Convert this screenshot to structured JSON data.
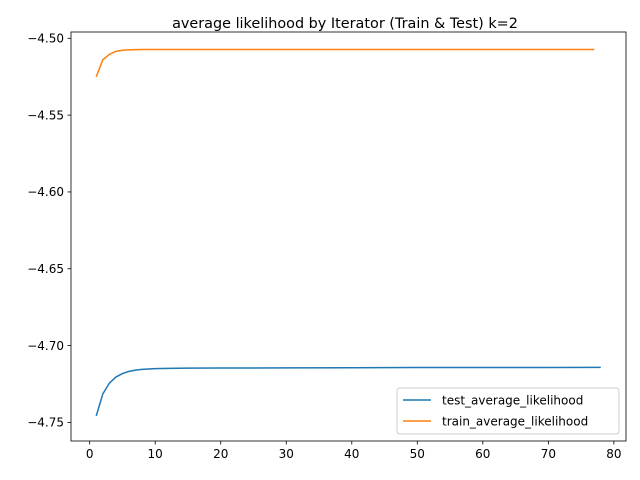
{
  "chart_data": {
    "type": "line",
    "title": "average likelihood by Iterator (Train & Test) k=2",
    "xlabel": "",
    "ylabel": "",
    "xlim": [
      -2.85,
      81.85
    ],
    "ylim": [
      -4.7621,
      -4.4959
    ],
    "xticks": [
      0,
      10,
      20,
      30,
      40,
      50,
      60,
      70,
      80
    ],
    "xtick_labels": [
      "0",
      "10",
      "20",
      "30",
      "40",
      "50",
      "60",
      "70",
      "80"
    ],
    "yticks": [
      -4.75,
      -4.7,
      -4.65,
      -4.6,
      -4.55,
      -4.5
    ],
    "ytick_labels": [
      "−4.75",
      "−4.70",
      "−4.65",
      "−4.60",
      "−4.55",
      "−4.50"
    ],
    "grid": false,
    "legend_position": "lower right",
    "series": [
      {
        "name": "test_average_likelihood",
        "color": "#1f77b4",
        "x": [
          1,
          2,
          3,
          4,
          5,
          6,
          7,
          8,
          9,
          10,
          12,
          15,
          20,
          30,
          40,
          50,
          60,
          70,
          78
        ],
        "y": [
          -4.7458,
          -4.7315,
          -4.7245,
          -4.7205,
          -4.7182,
          -4.7168,
          -4.716,
          -4.7155,
          -4.7152,
          -4.715,
          -4.7148,
          -4.7147,
          -4.7146,
          -4.7145,
          -4.7144,
          -4.7143,
          -4.7143,
          -4.7143,
          -4.7142
        ]
      },
      {
        "name": "train_average_likelihood",
        "color": "#ff7f0e",
        "x": [
          1,
          2,
          3,
          4,
          5,
          6,
          7,
          8,
          10,
          15,
          20,
          30,
          40,
          50,
          60,
          70,
          77
        ],
        "y": [
          -4.525,
          -4.514,
          -4.5105,
          -4.5085,
          -4.5078,
          -4.5075,
          -4.5074,
          -4.5073,
          -4.5073,
          -4.5073,
          -4.5073,
          -4.5073,
          -4.5073,
          -4.5073,
          -4.5073,
          -4.5073,
          -4.5073
        ]
      }
    ]
  }
}
